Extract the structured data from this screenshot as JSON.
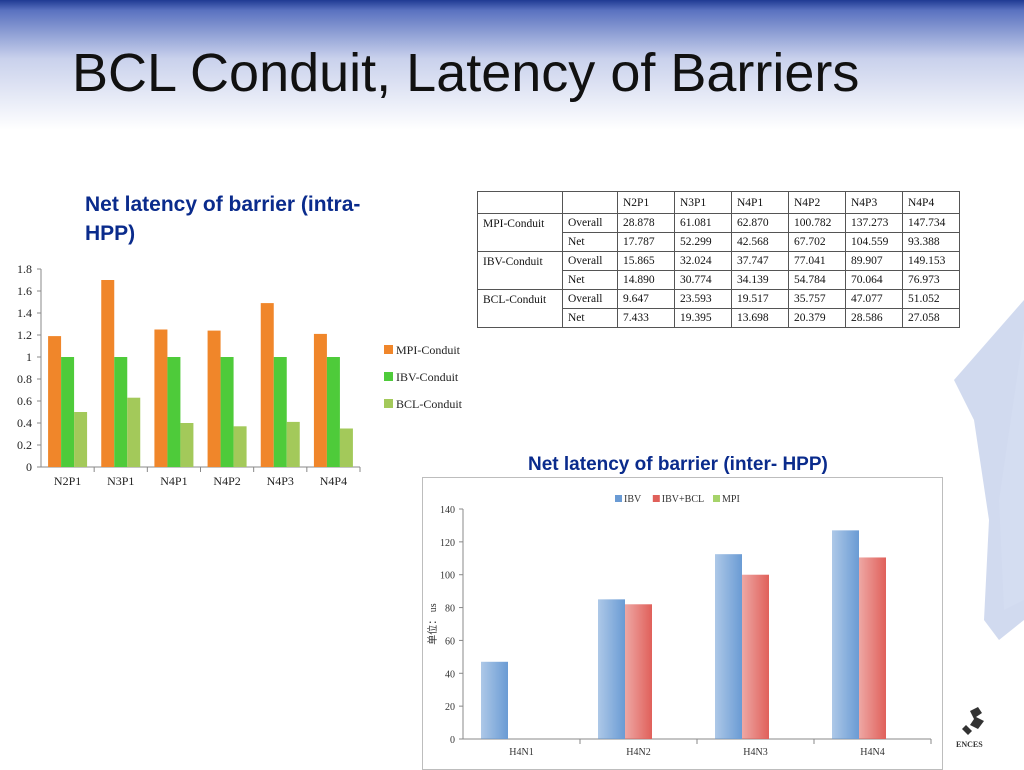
{
  "slide": {
    "title": "BCL Conduit, Latency of Barriers",
    "logo_text": "ENCES"
  },
  "colors": {
    "header_dark": "#1f3a93",
    "heading_text": "#0a2b8c",
    "mpi": "#f0862a",
    "ibv": "#4ecb3a",
    "bcl": "#a3c95a",
    "inter_ibv": "#6a9bd4",
    "inter_ibv_bcl": "#e0605a",
    "inter_mpi": "#a6d36a"
  },
  "intra_heading": "Net latency of barrier (intra-HPP)",
  "inter_heading": "Net latency of barrier (inter- HPP)",
  "table": {
    "headers": [
      "",
      "",
      "N2P1",
      "N3P1",
      "N4P1",
      "N4P2",
      "N4P3",
      "N4P4"
    ],
    "groups": [
      {
        "name": "MPI-Conduit",
        "rows": [
          {
            "label": "Overall",
            "values": [
              "28.878",
              "61.081",
              "62.870",
              "100.782",
              "137.273",
              "147.734"
            ]
          },
          {
            "label": "Net",
            "values": [
              "17.787",
              "52.299",
              "42.568",
              "67.702",
              "104.559",
              "93.388"
            ]
          }
        ]
      },
      {
        "name": "IBV-Conduit",
        "rows": [
          {
            "label": "Overall",
            "values": [
              "15.865",
              "32.024",
              "37.747",
              "77.041",
              "89.907",
              "149.153"
            ]
          },
          {
            "label": "Net",
            "values": [
              "14.890",
              "30.774",
              "34.139",
              "54.784",
              "70.064",
              "76.973"
            ]
          }
        ]
      },
      {
        "name": "BCL-Conduit",
        "rows": [
          {
            "label": "Overall",
            "values": [
              "9.647",
              "23.593",
              "19.517",
              "35.757",
              "47.077",
              "51.052"
            ]
          },
          {
            "label": "Net",
            "values": [
              "7.433",
              "19.395",
              "13.698",
              "20.379",
              "28.586",
              "27.058"
            ]
          }
        ]
      }
    ]
  },
  "chart_data": [
    {
      "type": "bar",
      "title": "",
      "xlabel": "",
      "ylabel": "",
      "categories": [
        "N2P1",
        "N3P1",
        "N4P1",
        "N4P2",
        "N4P3",
        "N4P4"
      ],
      "ylim": [
        0,
        1.8
      ],
      "yticks": [
        "0",
        "0.2",
        "0.4",
        "0.6",
        "0.8",
        "1",
        "1.2",
        "1.4",
        "1.6",
        "1.8"
      ],
      "grid": false,
      "legend_position": "right",
      "series": [
        {
          "name": "MPI-Conduit",
          "color": "#f0862a",
          "values": [
            1.19,
            1.7,
            1.25,
            1.24,
            1.49,
            1.21
          ]
        },
        {
          "name": "IBV-Conduit",
          "color": "#4ecb3a",
          "values": [
            1,
            1,
            1,
            1,
            1,
            1
          ]
        },
        {
          "name": "BCL-Conduit",
          "color": "#a3c95a",
          "values": [
            0.5,
            0.63,
            0.4,
            0.37,
            0.41,
            0.35
          ]
        }
      ]
    },
    {
      "type": "bar",
      "title": "",
      "xlabel": "",
      "ylabel": "单位： us",
      "categories": [
        "H4N1",
        "H4N2",
        "H4N3",
        "H4N4"
      ],
      "ylim": [
        0,
        140
      ],
      "yticks": [
        "0",
        "20",
        "40",
        "60",
        "80",
        "100",
        "120",
        "140"
      ],
      "grid": false,
      "legend_position": "top",
      "series": [
        {
          "name": "IBV",
          "color": "#6a9bd4",
          "values": [
            47,
            85,
            112.5,
            127
          ]
        },
        {
          "name": "IBV+BCL",
          "color": "#e0605a",
          "values": [
            0,
            82,
            100,
            110.5
          ]
        },
        {
          "name": "MPI",
          "color": "#a6d36a",
          "values": [
            0,
            0,
            0,
            0
          ]
        }
      ]
    }
  ]
}
